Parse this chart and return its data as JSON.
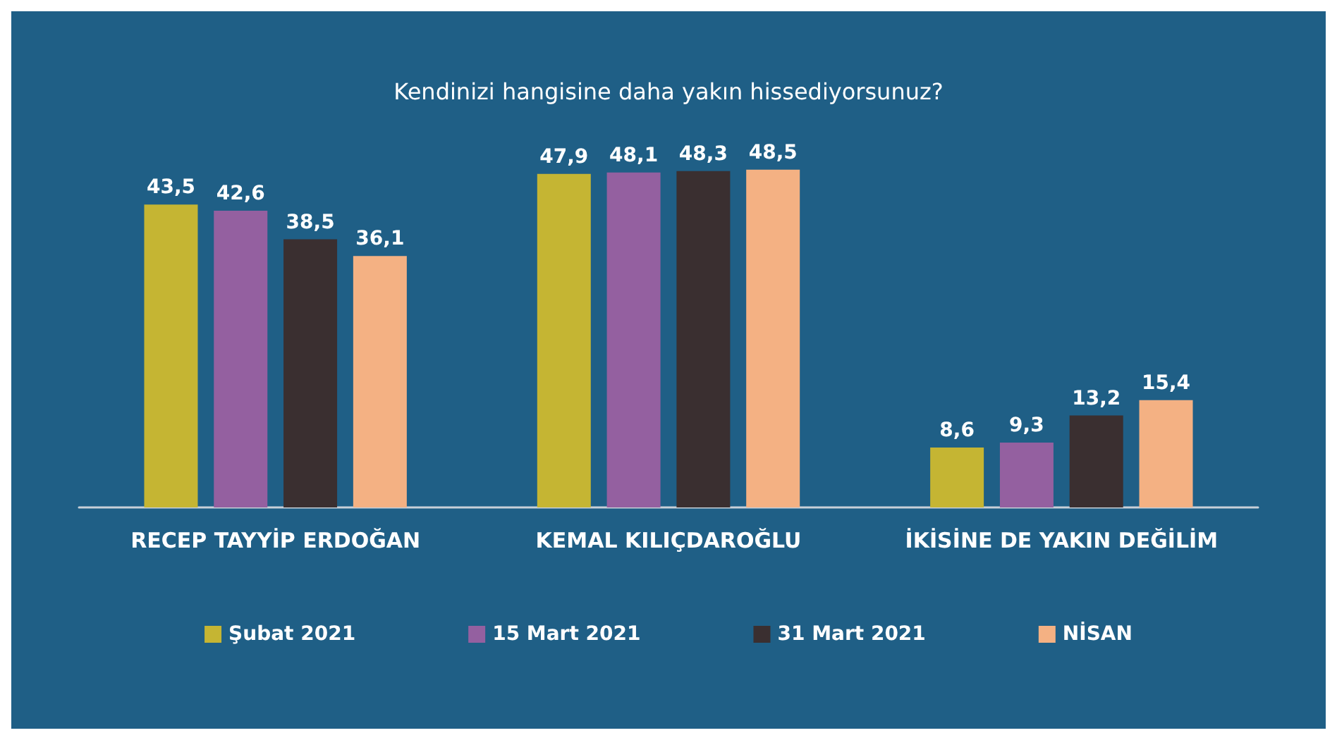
{
  "chart_data": {
    "type": "bar",
    "title": "Kendinizi hangisine daha yakın hissediyorsunuz?",
    "categories": [
      "RECEP TAYYİP ERDOĞAN",
      "KEMAL KILIÇDAROĞLU",
      "İKİSİNE DE YAKIN DEĞİLİM"
    ],
    "series": [
      {
        "name": "Şubat 2021",
        "color": "#c5b533",
        "values": [
          43.5,
          47.9,
          8.6
        ],
        "value_labels": [
          "43,5",
          "47,9",
          "8,6"
        ]
      },
      {
        "name": "15 Mart 2021",
        "color": "#9460a0",
        "values": [
          42.6,
          48.1,
          9.3
        ],
        "value_labels": [
          "42,6",
          "48,1",
          "9,3"
        ]
      },
      {
        "name": "31 Mart 2021",
        "color": "#3a2f30",
        "values": [
          38.5,
          48.3,
          13.2
        ],
        "value_labels": [
          "38,5",
          "48,3",
          "13,2"
        ]
      },
      {
        "name": "NİSAN",
        "color": "#f4b183",
        "values": [
          36.1,
          48.5,
          15.4
        ],
        "value_labels": [
          "36,1",
          "48,5",
          "15,4"
        ]
      }
    ],
    "legend": "bottom"
  }
}
